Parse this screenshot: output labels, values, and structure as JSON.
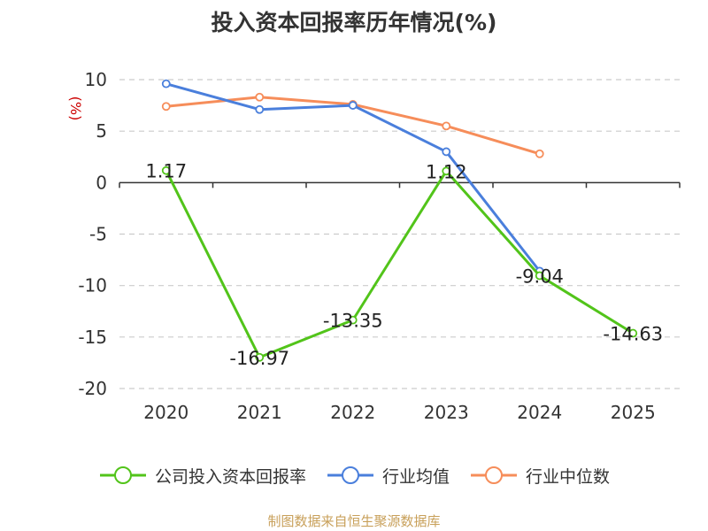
{
  "chart_data": {
    "type": "line",
    "title": "投入资本回报率历年情况(%)",
    "ylabel": "(%)",
    "categories": [
      "2020",
      "2021",
      "2022",
      "2023",
      "2024",
      "2025"
    ],
    "ylim": [
      -20,
      10
    ],
    "yticks": [
      10,
      5,
      0,
      -5,
      -10,
      -15,
      -20
    ],
    "grid": true,
    "legend_position": "bottom",
    "series": [
      {
        "name": "公司投入资本回报率",
        "color": "#52c41a",
        "values": [
          1.17,
          -16.97,
          -13.35,
          1.12,
          -9.04,
          -14.63
        ],
        "labels": [
          "1.17",
          "-16.97",
          "-13.35",
          "1.12",
          "-9.04",
          "-14.63"
        ]
      },
      {
        "name": "行业均值",
        "color": "#4a7fdc",
        "values": [
          9.6,
          7.1,
          7.5,
          3.0,
          -8.6,
          null
        ]
      },
      {
        "name": "行业中位数",
        "color": "#f68d5a",
        "values": [
          7.4,
          8.3,
          7.6,
          5.5,
          2.8,
          null
        ]
      }
    ]
  },
  "source": "制图数据来自恒生聚源数据库"
}
